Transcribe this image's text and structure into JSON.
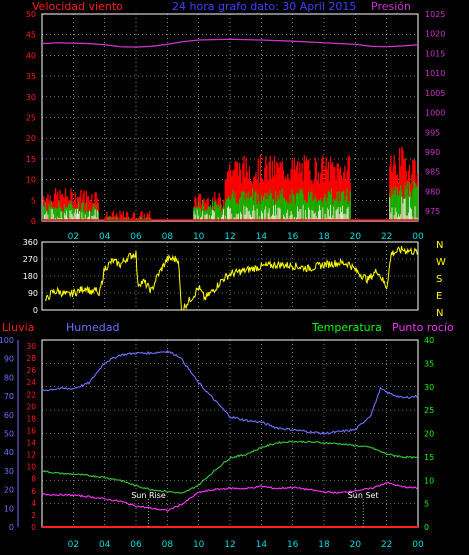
{
  "header": {
    "left_label": "Velocidad viento",
    "center_label": "24 hora grafo dato: 30 April 2015",
    "right_label": "Presión"
  },
  "colors": {
    "background": "#000000",
    "grid": "#cfcfcf",
    "wind_gust": "#ff0000",
    "wind_avg": "#00c000",
    "wind_low": "#ffffff",
    "pressure": "#cc33cc",
    "direction": "#ffff00",
    "humidity": "#6f6fff",
    "temperature": "#33cc33",
    "dew_point": "#ff33ff",
    "rain": "#ff2020",
    "label_red": "#ff1a1a",
    "label_blue": "#4040ff",
    "label_cyan": "#00dddd",
    "label_magenta": "#ee33ee",
    "label_white": "#ffffff",
    "label_green": "#00ff00"
  },
  "x_ticks": [
    "02",
    "04",
    "06",
    "08",
    "10",
    "12",
    "14",
    "16",
    "18",
    "20",
    "22",
    "00"
  ],
  "chart_data": [
    {
      "type": "bar",
      "name": "wind-pressure",
      "x_range": [
        0,
        24
      ],
      "y_left": {
        "label": "Velocidad viento",
        "ticks": [
          0,
          5,
          10,
          15,
          20,
          25,
          30,
          35,
          40,
          45,
          50
        ],
        "range": [
          0,
          50
        ]
      },
      "y_right": {
        "label": "Presión",
        "ticks": [
          975,
          980,
          985,
          990,
          995,
          1000,
          1005,
          1010,
          1015,
          1020,
          1025
        ],
        "range": [
          972.5,
          1025
        ]
      },
      "wind_segments": [
        {
          "from": 0.1,
          "to": 3.6,
          "gust": [
            4,
            8
          ],
          "avg": [
            2,
            5
          ],
          "low": [
            0,
            3
          ]
        },
        {
          "from": 4.0,
          "to": 7.0,
          "gust": [
            0,
            2.5
          ],
          "avg": [
            0,
            1
          ],
          "low": [
            0,
            0
          ]
        },
        {
          "from": 9.7,
          "to": 11.7,
          "gust": [
            3,
            7
          ],
          "avg": [
            2,
            5
          ],
          "low": [
            0,
            3
          ]
        },
        {
          "from": 11.7,
          "to": 19.7,
          "gust": [
            9,
            16
          ],
          "avg": [
            4,
            8
          ],
          "low": [
            0,
            4
          ]
        },
        {
          "from": 22.2,
          "to": 24.0,
          "gust": [
            9,
            18
          ],
          "avg": [
            5,
            10
          ],
          "low": [
            0,
            6
          ]
        }
      ],
      "pressure_points": [
        [
          0,
          1017.5
        ],
        [
          1,
          1017.7
        ],
        [
          3,
          1017.5
        ],
        [
          4,
          1017.2
        ],
        [
          5,
          1016.7
        ],
        [
          6,
          1016.6
        ],
        [
          7,
          1016.8
        ],
        [
          8,
          1017.3
        ],
        [
          9,
          1018.0
        ],
        [
          10,
          1018.4
        ],
        [
          12,
          1018.6
        ],
        [
          14,
          1018.4
        ],
        [
          16,
          1018.1
        ],
        [
          18,
          1017.7
        ],
        [
          20,
          1017.3
        ],
        [
          21,
          1016.8
        ],
        [
          22,
          1016.7
        ],
        [
          23,
          1016.9
        ],
        [
          24,
          1017.2
        ]
      ]
    },
    {
      "type": "line",
      "name": "wind-direction",
      "x_range": [
        0,
        24
      ],
      "y_left_ticks": [
        0,
        90,
        180,
        270,
        360
      ],
      "y_range": [
        0,
        360
      ],
      "right_labels": [
        "N",
        "W",
        "S",
        "E",
        "N"
      ],
      "points": [
        [
          0.2,
          45
        ],
        [
          0.6,
          90
        ],
        [
          1.0,
          100
        ],
        [
          1.6,
          80
        ],
        [
          2.2,
          95
        ],
        [
          2.8,
          120
        ],
        [
          3.2,
          90
        ],
        [
          3.5,
          110
        ],
        [
          3.6,
          60
        ],
        [
          4.0,
          220
        ],
        [
          4.5,
          260
        ],
        [
          5.0,
          240
        ],
        [
          5.5,
          280
        ],
        [
          6.0,
          300
        ],
        [
          6.1,
          140
        ],
        [
          6.5,
          150
        ],
        [
          7.0,
          100
        ],
        [
          7.3,
          170
        ],
        [
          8.0,
          270
        ],
        [
          8.7,
          270
        ],
        [
          8.9,
          0
        ],
        [
          9.7,
          80
        ],
        [
          10.0,
          120
        ],
        [
          10.4,
          60
        ],
        [
          11.0,
          110
        ],
        [
          11.5,
          160
        ],
        [
          12.0,
          190
        ],
        [
          13.0,
          210
        ],
        [
          14.0,
          230
        ],
        [
          15.0,
          240
        ],
        [
          16.0,
          235
        ],
        [
          17.0,
          220
        ],
        [
          18.0,
          240
        ],
        [
          19.0,
          250
        ],
        [
          19.6,
          245
        ],
        [
          20.0,
          210
        ],
        [
          20.8,
          160
        ],
        [
          21.4,
          210
        ],
        [
          22.0,
          120
        ],
        [
          22.3,
          300
        ],
        [
          23.0,
          320
        ],
        [
          24.0,
          305
        ]
      ]
    },
    {
      "type": "line",
      "name": "climate",
      "x_range": [
        0,
        24
      ],
      "series": [
        {
          "name": "Humedad",
          "axis": "humidity",
          "points": [
            [
              0,
              73
            ],
            [
              1,
              74
            ],
            [
              2,
              74
            ],
            [
              3,
              77
            ],
            [
              4,
              88
            ],
            [
              5,
              92
            ],
            [
              6,
              93
            ],
            [
              7,
              93
            ],
            [
              8,
              94
            ],
            [
              8.8,
              91
            ],
            [
              10,
              77
            ],
            [
              11,
              68
            ],
            [
              12,
              59
            ],
            [
              13,
              57
            ],
            [
              14,
              56
            ],
            [
              15,
              53
            ],
            [
              16,
              52
            ],
            [
              17,
              51
            ],
            [
              18,
              50
            ],
            [
              19,
              51
            ],
            [
              20,
              52
            ],
            [
              21,
              60
            ],
            [
              21.6,
              74
            ],
            [
              22,
              72
            ],
            [
              23,
              69
            ],
            [
              24,
              70
            ]
          ]
        },
        {
          "name": "Temperatura",
          "axis": "temperature",
          "points": [
            [
              0,
              12
            ],
            [
              1,
              11.5
            ],
            [
              2,
              11.3
            ],
            [
              3,
              11
            ],
            [
              4,
              10.6
            ],
            [
              5,
              10
            ],
            [
              6,
              8.8
            ],
            [
              7,
              8
            ],
            [
              8,
              7.6
            ],
            [
              9,
              7.2
            ],
            [
              10,
              9
            ],
            [
              11,
              12
            ],
            [
              12,
              14.8
            ],
            [
              13,
              15.5
            ],
            [
              14,
              17
            ],
            [
              15,
              18
            ],
            [
              16,
              18.3
            ],
            [
              17,
              18.2
            ],
            [
              18,
              18
            ],
            [
              19,
              17.8
            ],
            [
              20,
              17.4
            ],
            [
              21,
              17
            ],
            [
              22,
              15.6
            ],
            [
              23,
              15
            ],
            [
              24,
              14.8
            ]
          ]
        },
        {
          "name": "Punto rocío",
          "axis": "temperature",
          "points": [
            [
              0,
              7
            ],
            [
              1,
              6.9
            ],
            [
              2,
              6.8
            ],
            [
              3,
              6.5
            ],
            [
              4,
              6
            ],
            [
              5,
              5.5
            ],
            [
              6,
              4.5
            ],
            [
              7,
              4
            ],
            [
              8,
              3.5
            ],
            [
              9,
              5
            ],
            [
              10,
              7.4
            ],
            [
              11,
              8
            ],
            [
              12,
              8.3
            ],
            [
              13,
              8.2
            ],
            [
              14,
              8.7
            ],
            [
              15,
              8.2
            ],
            [
              16,
              8.5
            ],
            [
              17,
              8
            ],
            [
              18,
              7.5
            ],
            [
              19,
              7.3
            ],
            [
              20,
              7.8
            ],
            [
              21,
              8.2
            ],
            [
              22,
              9.5
            ],
            [
              23,
              8.6
            ],
            [
              24,
              8.3
            ]
          ]
        },
        {
          "name": "Lluvia",
          "axis": "rain",
          "points": [
            [
              0,
              0
            ],
            [
              24,
              0
            ]
          ]
        }
      ],
      "axes": {
        "rain": {
          "label": "Lluvia",
          "ticks": [
            0,
            10,
            20,
            30,
            40,
            50,
            60,
            70,
            80,
            90,
            100
          ],
          "range": [
            0,
            100
          ]
        },
        "humidity": {
          "label": "Humedad",
          "ticks": [
            0,
            2,
            4,
            6,
            8,
            10,
            12,
            14,
            16,
            18,
            20,
            22,
            24,
            26,
            28,
            30
          ],
          "range": [
            0,
            31
          ]
        },
        "temperature": {
          "label": "Temperatura",
          "ticks": [
            0,
            5,
            10,
            15,
            20,
            25,
            30,
            35,
            40
          ],
          "range": [
            0,
            40
          ]
        },
        "dew_point": {
          "label": "Punto rocío"
        }
      },
      "annotations": [
        {
          "text": "Sun Rise",
          "x": 6.8
        },
        {
          "text": "Sun Set",
          "x": 20.5
        }
      ]
    }
  ]
}
